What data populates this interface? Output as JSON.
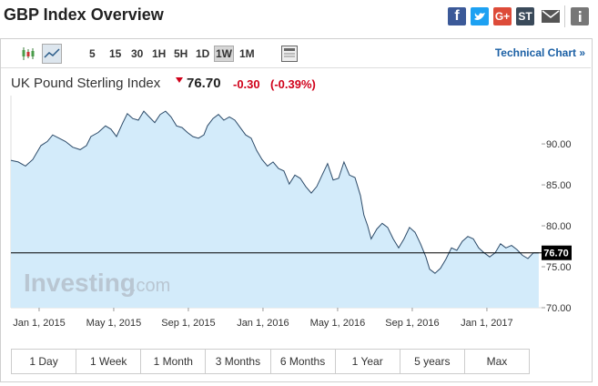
{
  "header": {
    "title": "GBP Index Overview",
    "share": [
      "f",
      "G+",
      "ST"
    ]
  },
  "toolbar": {
    "intervals": [
      "5",
      "15",
      "30",
      "1H",
      "5H",
      "1D",
      "1W",
      "1M"
    ],
    "selected": 6,
    "link": "Technical Chart »"
  },
  "quote": {
    "name": "UK Pound Sterling Index",
    "last": "76.70",
    "change": "-0.30",
    "change_pct": "(-0.39%)"
  },
  "chart_data": {
    "type": "area",
    "watermark": [
      "Investing",
      ".com"
    ],
    "color": "#2c4a68",
    "fill": "#d3ebfa",
    "x": [
      -1.51,
      -1.12,
      -0.73,
      -0.34,
      0.1,
      0.44,
      0.73,
      1.07,
      1.41,
      1.8,
      2.2,
      2.54,
      2.78,
      3.17,
      3.56,
      3.85,
      4.15,
      4.49,
      4.73,
      5.02,
      5.32,
      5.61,
      5.9,
      6.2,
      6.49,
      6.78,
      7.07,
      7.37,
      7.66,
      7.95,
      8.24,
      8.54,
      8.83,
      9.02,
      9.32,
      9.61,
      9.9,
      10.2,
      10.49,
      10.78,
      11.07,
      11.37,
      11.66,
      11.95,
      12.24,
      12.54,
      12.83,
      13.12,
      13.41,
      13.71,
      14.0,
      14.29,
      14.59,
      14.88,
      15.17,
      15.46,
      15.76,
      16.05,
      16.34,
      16.63,
      16.93,
      17.22,
      17.41,
      17.61,
      17.8,
      18.1,
      18.39,
      18.68,
      18.98,
      19.27,
      19.56,
      19.85,
      20.15,
      20.44,
      20.73,
      20.93,
      21.22,
      21.51,
      21.8,
      22.1,
      22.39,
      22.68,
      22.98,
      23.27,
      23.56,
      23.85,
      24.15,
      24.44,
      24.73,
      25.02,
      25.32,
      25.61,
      25.9,
      26.2,
      26.49,
      26.78
    ],
    "values": [
      88.0,
      87.8,
      87.3,
      88.1,
      89.8,
      90.3,
      91.1,
      90.7,
      90.3,
      89.6,
      89.3,
      89.8,
      90.9,
      91.4,
      92.2,
      91.8,
      90.9,
      92.6,
      93.7,
      93.1,
      92.9,
      94.0,
      93.3,
      92.6,
      93.6,
      94.0,
      93.3,
      92.2,
      92.0,
      91.4,
      90.9,
      90.7,
      91.1,
      92.2,
      93.1,
      93.6,
      92.9,
      93.3,
      92.9,
      92.0,
      91.1,
      90.7,
      89.2,
      88.1,
      87.3,
      87.8,
      87.0,
      86.7,
      85.1,
      86.2,
      85.8,
      84.8,
      84.0,
      84.8,
      86.2,
      87.6,
      85.6,
      85.8,
      87.8,
      86.2,
      85.9,
      83.7,
      81.3,
      80.0,
      78.4,
      79.6,
      80.3,
      79.8,
      78.4,
      77.3,
      78.4,
      79.8,
      79.2,
      77.8,
      76.2,
      74.7,
      74.2,
      74.8,
      75.9,
      77.3,
      77.0,
      78.1,
      78.7,
      78.4,
      77.3,
      76.7,
      76.2,
      76.7,
      77.8,
      77.3,
      77.6,
      77.1,
      76.4,
      76.0,
      76.7,
      76.7
    ],
    "xlim": [
      -1.51,
      26.93
    ],
    "xticks": [
      {
        "value": 0,
        "label": "Jan 1, 2015"
      },
      {
        "value": 4,
        "label": "May 1, 2015"
      },
      {
        "value": 8,
        "label": "Sep 1, 2015"
      },
      {
        "value": 12,
        "label": "Jan 1, 2016"
      },
      {
        "value": 16,
        "label": "May 1, 2016"
      },
      {
        "value": 20,
        "label": "Sep 1, 2016"
      },
      {
        "value": 24,
        "label": "Jan 1, 2017"
      }
    ],
    "ylim": [
      70,
      95.9
    ],
    "yticks": [
      {
        "value": 70,
        "label": "70.00"
      },
      {
        "value": 75,
        "label": "75.00"
      },
      {
        "value": 80,
        "label": "80.00"
      },
      {
        "value": 85,
        "label": "85.00"
      },
      {
        "value": 90,
        "label": "90.00"
      }
    ],
    "price_label": {
      "value": 76.7,
      "label": "76.70"
    }
  },
  "ranges": [
    "1 Day",
    "1 Week",
    "1 Month",
    "3 Months",
    "6 Months",
    "1 Year",
    "5 years",
    "Max"
  ]
}
